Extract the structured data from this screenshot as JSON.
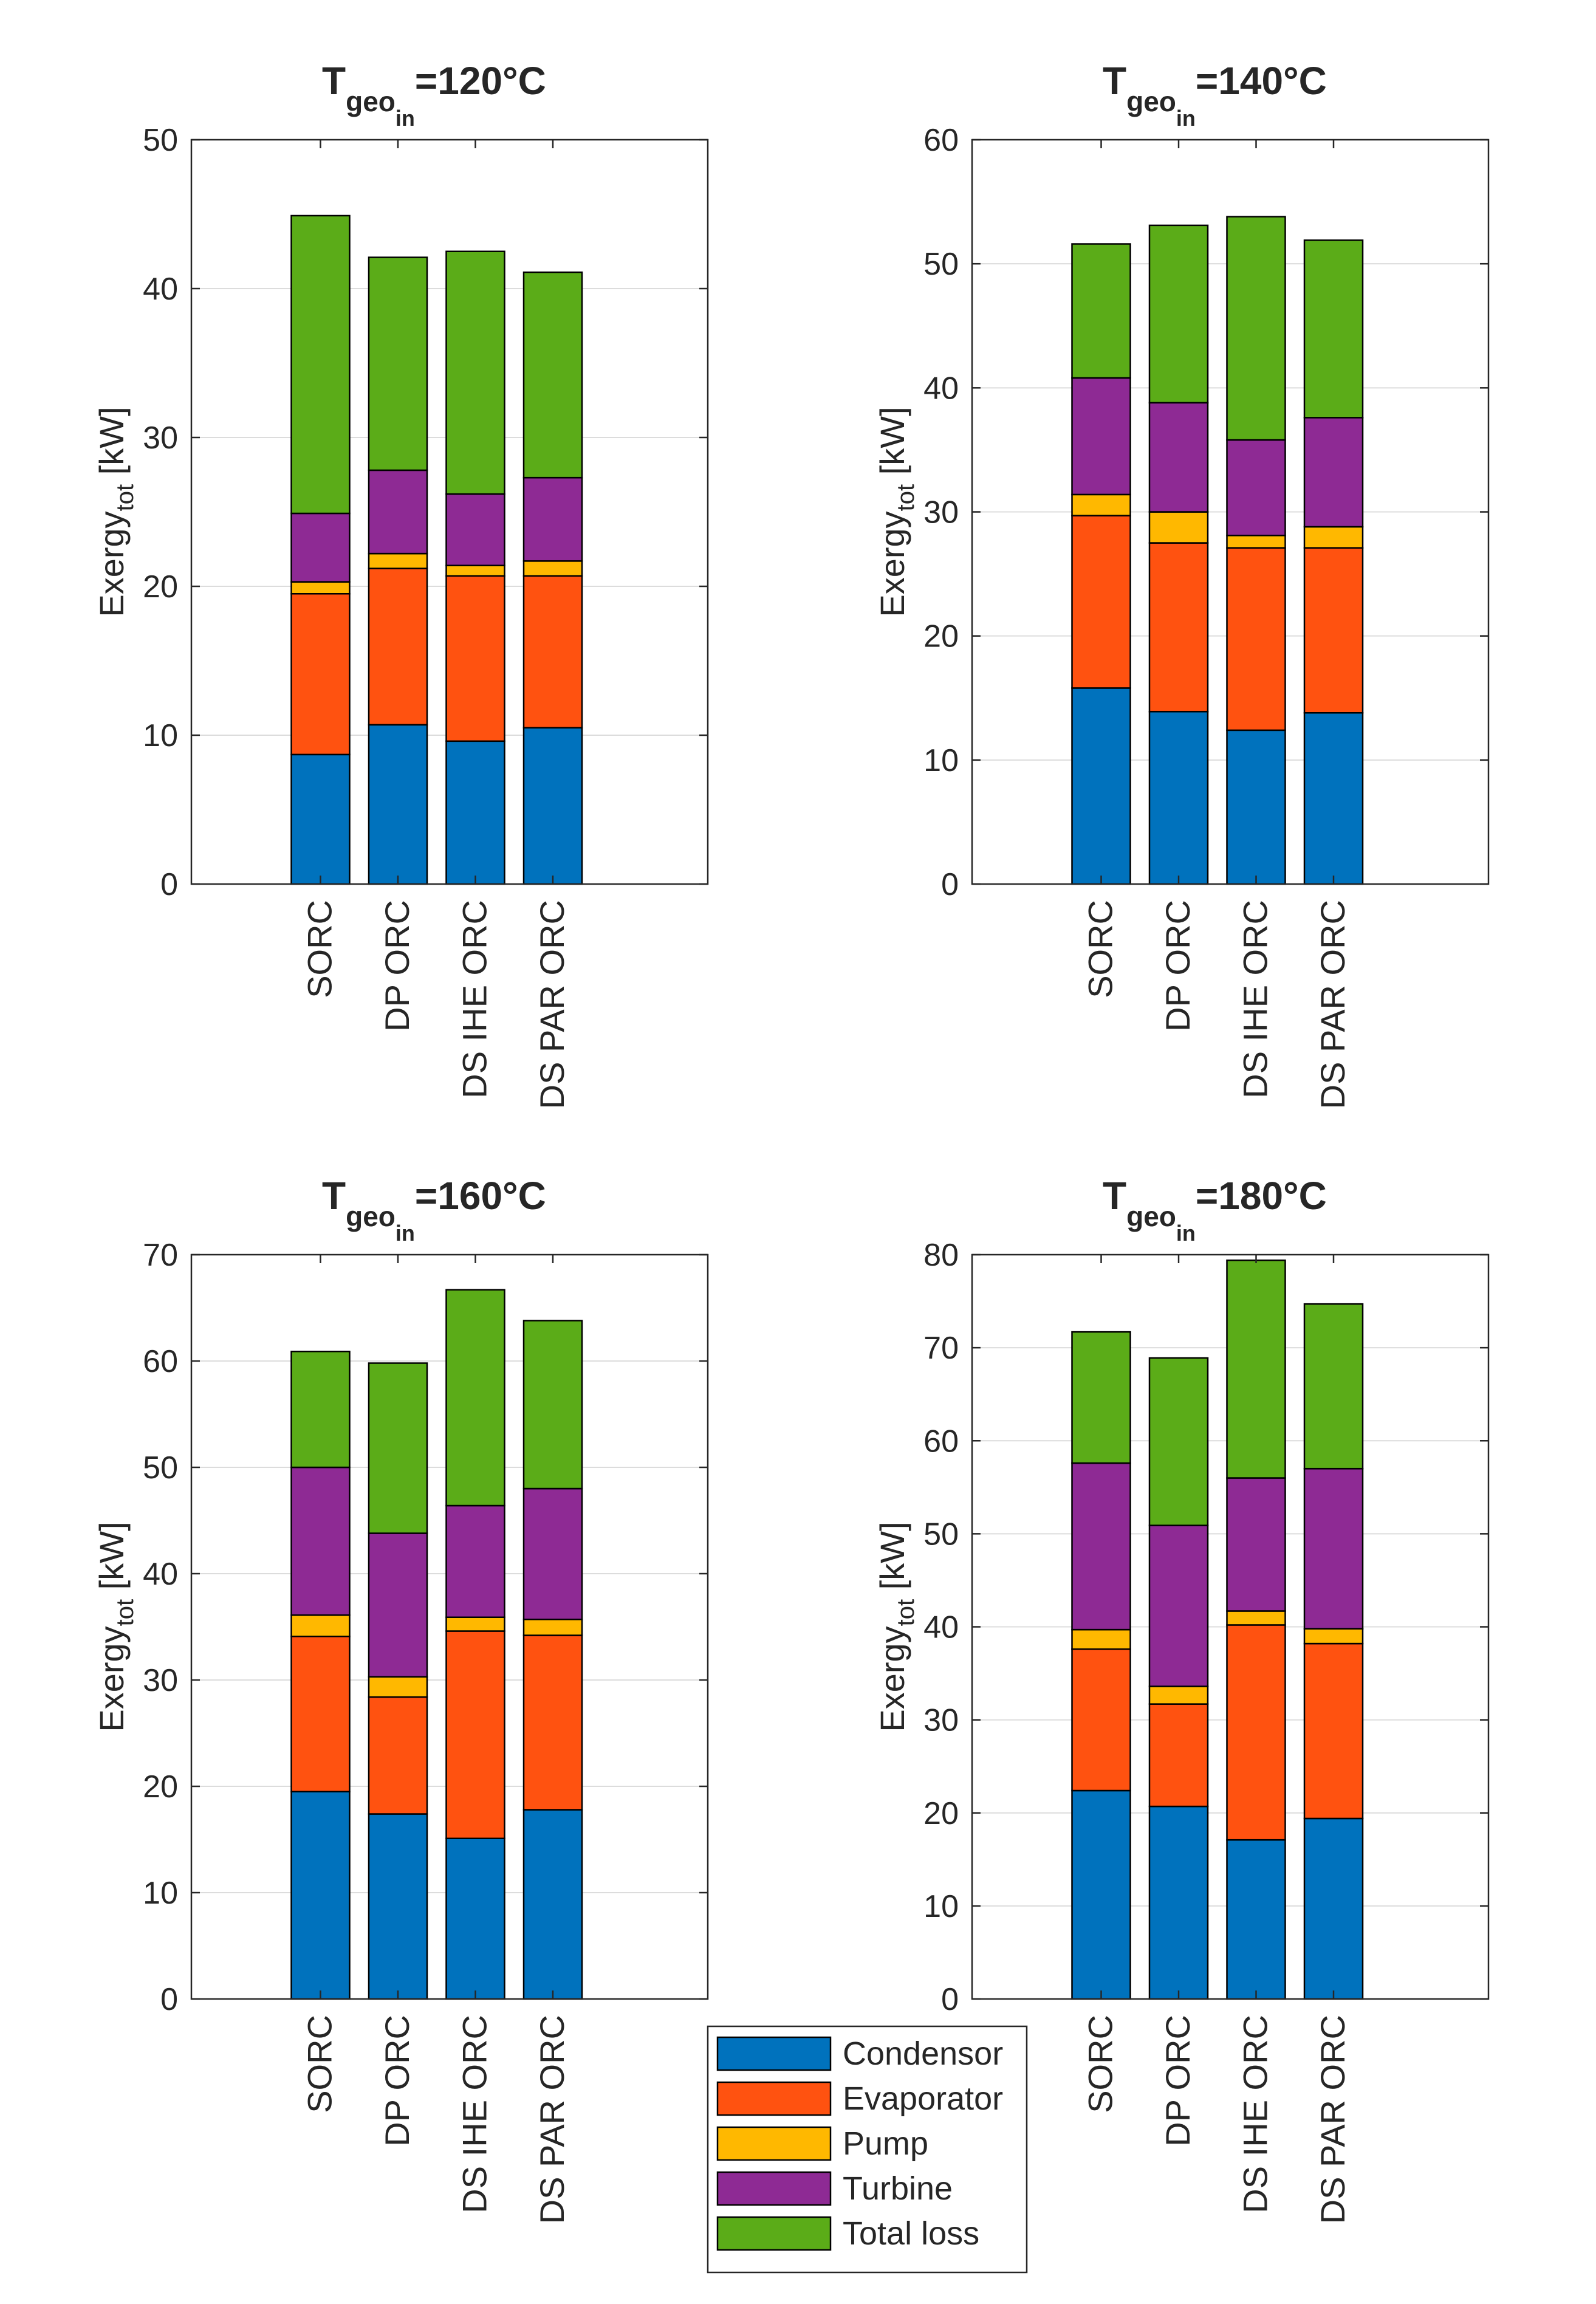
{
  "chart_data": [
    {
      "type": "bar",
      "stacked": true,
      "title": "T",
      "title_subscript": "geo",
      "title_subsubscript": "in",
      "title_suffix": "=120°C",
      "ylabel": "Exergy",
      "ylabel_subscript": "tot",
      "ylabel_suffix": " [kW]",
      "ylim": [
        0,
        50
      ],
      "yticks": [
        "0",
        "10",
        "20",
        "30",
        "40",
        "50"
      ],
      "categories": [
        "SORC",
        "DP ORC",
        "DS IHE ORC",
        "DS PAR ORC"
      ],
      "grid": true,
      "series": [
        {
          "name": "Condensor",
          "values": [
            8.7,
            10.7,
            9.6,
            10.5
          ]
        },
        {
          "name": "Evaporator",
          "values": [
            10.8,
            10.5,
            11.1,
            10.2
          ]
        },
        {
          "name": "Pump",
          "values": [
            0.8,
            1.0,
            0.7,
            1.0
          ]
        },
        {
          "name": "Turbine",
          "values": [
            4.6,
            5.6,
            4.8,
            5.6
          ]
        },
        {
          "name": "Total loss",
          "values": [
            20.0,
            14.3,
            16.3,
            13.8
          ]
        }
      ]
    },
    {
      "type": "bar",
      "stacked": true,
      "title": "T",
      "title_subscript": "geo",
      "title_subsubscript": "in",
      "title_suffix": "=140°C",
      "ylabel": "Exergy",
      "ylabel_subscript": "tot",
      "ylabel_suffix": " [kW]",
      "ylim": [
        0,
        60
      ],
      "yticks": [
        "0",
        "10",
        "20",
        "30",
        "40",
        "50",
        "60"
      ],
      "categories": [
        "SORC",
        "DP ORC",
        "DS IHE ORC",
        "DS PAR ORC"
      ],
      "grid": true,
      "series": [
        {
          "name": "Condensor",
          "values": [
            15.8,
            13.9,
            12.4,
            13.8
          ]
        },
        {
          "name": "Evaporator",
          "values": [
            13.9,
            13.6,
            14.7,
            13.3
          ]
        },
        {
          "name": "Pump",
          "values": [
            1.7,
            2.5,
            1.0,
            1.7
          ]
        },
        {
          "name": "Turbine",
          "values": [
            9.4,
            8.8,
            7.7,
            8.8
          ]
        },
        {
          "name": "Total loss",
          "values": [
            10.8,
            14.3,
            18.0,
            14.3
          ]
        }
      ]
    },
    {
      "type": "bar",
      "stacked": true,
      "title": "T",
      "title_subscript": "geo",
      "title_subsubscript": "in",
      "title_suffix": "=160°C",
      "ylabel": "Exergy",
      "ylabel_subscript": "tot",
      "ylabel_suffix": " [kW]",
      "ylim": [
        0,
        70
      ],
      "yticks": [
        "0",
        "10",
        "20",
        "30",
        "40",
        "50",
        "60",
        "70"
      ],
      "categories": [
        "SORC",
        "DP ORC",
        "DS IHE ORC",
        "DS PAR ORC"
      ],
      "grid": true,
      "series": [
        {
          "name": "Condensor",
          "values": [
            19.5,
            17.4,
            15.1,
            17.8
          ]
        },
        {
          "name": "Evaporator",
          "values": [
            14.6,
            11.0,
            19.5,
            16.4
          ]
        },
        {
          "name": "Pump",
          "values": [
            2.0,
            1.9,
            1.3,
            1.5
          ]
        },
        {
          "name": "Turbine",
          "values": [
            13.9,
            13.5,
            10.5,
            12.3
          ]
        },
        {
          "name": "Total loss",
          "values": [
            10.9,
            16.0,
            20.3,
            15.8
          ]
        }
      ]
    },
    {
      "type": "bar",
      "stacked": true,
      "title": "T",
      "title_subscript": "geo",
      "title_subsubscript": "in",
      "title_suffix": "=180°C",
      "ylabel": "Exergy",
      "ylabel_subscript": "tot",
      "ylabel_suffix": " [kW]",
      "ylim": [
        0,
        80
      ],
      "yticks": [
        "0",
        "10",
        "20",
        "30",
        "40",
        "50",
        "60",
        "70",
        "80"
      ],
      "categories": [
        "SORC",
        "DP ORC",
        "DS IHE ORC",
        "DS PAR ORC"
      ],
      "grid": true,
      "series": [
        {
          "name": "Condensor",
          "values": [
            22.4,
            20.7,
            17.1,
            19.4
          ]
        },
        {
          "name": "Evaporator",
          "values": [
            15.2,
            11.0,
            23.1,
            18.8
          ]
        },
        {
          "name": "Pump",
          "values": [
            2.1,
            1.9,
            1.5,
            1.6
          ]
        },
        {
          "name": "Turbine",
          "values": [
            17.9,
            17.3,
            14.3,
            17.2
          ]
        },
        {
          "name": "Total loss",
          "values": [
            14.1,
            18.0,
            23.4,
            17.7
          ]
        }
      ]
    }
  ],
  "legend": {
    "location": "bottom-center",
    "entries": [
      {
        "label": "Condensor",
        "color": "#0072BD"
      },
      {
        "label": "Evaporator",
        "color": "#FF5210"
      },
      {
        "label": "Pump",
        "color": "#FFB800"
      },
      {
        "label": "Turbine",
        "color": "#8E2A94"
      },
      {
        "label": "Total loss",
        "color": "#5BAC18"
      }
    ]
  },
  "colors": {
    "Condensor": "#0072BD",
    "Evaporator": "#FF5210",
    "Pump": "#FFB800",
    "Turbine": "#8E2A94",
    "Total loss": "#5BAC18",
    "grid": "#dcdcdc",
    "axis": "#262626"
  }
}
